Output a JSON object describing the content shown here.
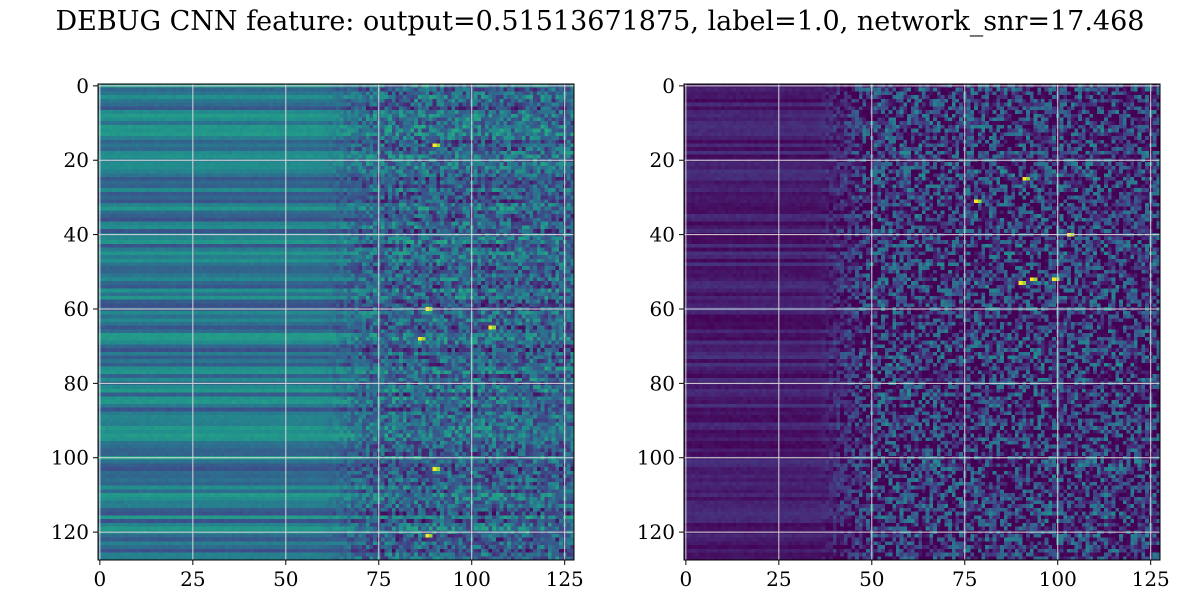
{
  "figure": {
    "title": "DEBUG CNN feature: output=0.51513671875, label=1.0, network_snr=17.468"
  },
  "chart_data": [
    {
      "type": "heatmap",
      "name": "",
      "colormap": "viridis",
      "rows": 128,
      "cols": 128,
      "xlim": [
        -0.5,
        127.5
      ],
      "ylim": [
        127.5,
        -0.5
      ],
      "y_inverted": true,
      "grid": true,
      "x_ticks": [
        0,
        25,
        50,
        75,
        100,
        125
      ],
      "y_ticks": [
        0,
        20,
        40,
        60,
        80,
        100,
        120
      ],
      "x_tick_labels": [
        "0",
        "25",
        "50",
        "75",
        "100",
        "125"
      ],
      "y_tick_labels": [
        "0",
        "20",
        "40",
        "60",
        "80",
        "100",
        "120"
      ],
      "pattern": {
        "description_left_region": "smooth horizontal bands (cols 0-70)",
        "noisy_region_start_col": 74,
        "base_level_range": [
          0.25,
          0.55
        ],
        "noise_amplitude": 0.3,
        "hot_spots": [
          [
            16,
            90
          ],
          [
            60,
            88
          ],
          [
            68,
            86
          ],
          [
            103,
            90
          ],
          [
            65,
            105
          ],
          [
            121,
            88
          ]
        ]
      }
    },
    {
      "type": "heatmap",
      "name": "",
      "colormap": "viridis",
      "rows": 128,
      "cols": 128,
      "xlim": [
        -0.5,
        127.5
      ],
      "ylim": [
        127.5,
        -0.5
      ],
      "y_inverted": true,
      "grid": true,
      "x_ticks": [
        0,
        25,
        50,
        75,
        100,
        125
      ],
      "y_ticks": [
        0,
        20,
        40,
        60,
        80,
        100,
        120
      ],
      "x_tick_labels": [
        "0",
        "25",
        "50",
        "75",
        "100",
        "125"
      ],
      "y_tick_labels": [
        "0",
        "20",
        "40",
        "60",
        "80",
        "100",
        "120"
      ],
      "pattern": {
        "description_left_region": "dark purple bands (cols 0-50)",
        "noisy_region_start_col": 50,
        "base_level_range": [
          0.02,
          0.15
        ],
        "noise_amplitude": 0.45,
        "hot_spots": [
          [
            25,
            91
          ],
          [
            31,
            78
          ],
          [
            40,
            103
          ],
          [
            52,
            93
          ],
          [
            52,
            99
          ],
          [
            53,
            90
          ]
        ]
      }
    }
  ]
}
